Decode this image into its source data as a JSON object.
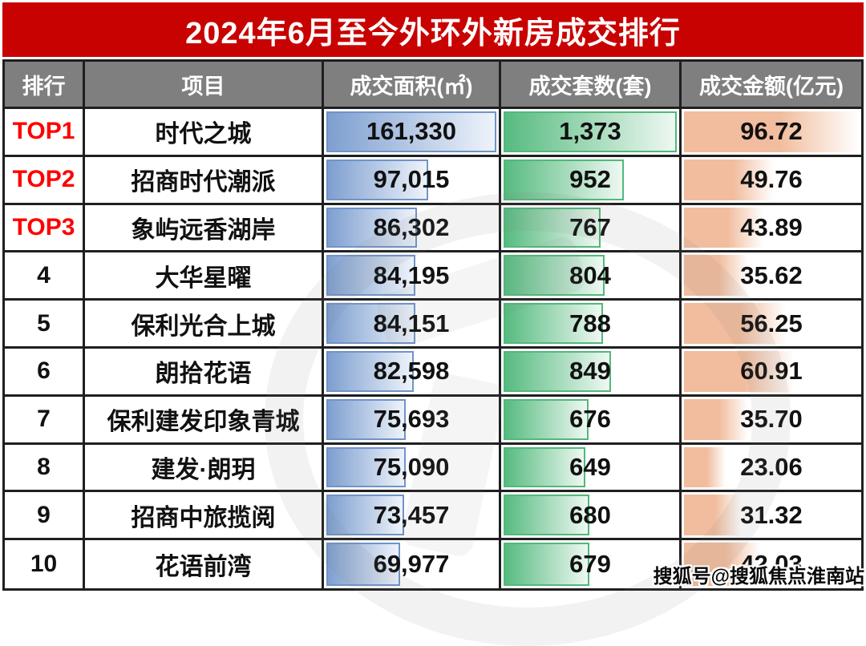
{
  "title": "2024年6月至今外环外新房成交排行",
  "watermark_text": "搜狐号@搜狐焦点淮南站",
  "colors": {
    "title_bg": "#c80101",
    "title_text": "#ffffff",
    "header_bg": "#7f7f7f",
    "header_text": "#ffffff",
    "grid_line": "#1f1f1f",
    "body_text": "#111111",
    "rank_top_text": "#ff0000",
    "area_bar_start": "#7e9fd0",
    "area_bar_end": "#eef3fa",
    "area_bar_border": "#6f94c8",
    "units_bar_start": "#57bb80",
    "units_bar_end": "#eef8f2",
    "units_bar_border": "#52b87a",
    "amount_bar_start": "#f1bd9e",
    "amount_bar_end": "#ffffff"
  },
  "chart_data": {
    "type": "table",
    "title": "2024年6月至今外环外新房成交排行",
    "columns": [
      "排行",
      "项目",
      "成交面积(㎡)",
      "成交套数(套)",
      "成交金额(亿元)"
    ],
    "bar_scaling": "bar width proportional to value / column max",
    "max": {
      "area": 161330,
      "units": 1373,
      "amount": 96.72
    },
    "rows": [
      {
        "rank": "TOP1",
        "project": "时代之城",
        "area": 161330,
        "area_text": "161,330",
        "units": 1373,
        "units_text": "1,373",
        "amount": 96.72,
        "amount_text": "96.72"
      },
      {
        "rank": "TOP2",
        "project": "招商时代潮派",
        "area": 97015,
        "area_text": "97,015",
        "units": 952,
        "units_text": "952",
        "amount": 49.76,
        "amount_text": "49.76"
      },
      {
        "rank": "TOP3",
        "project": "象屿远香湖岸",
        "area": 86302,
        "area_text": "86,302",
        "units": 767,
        "units_text": "767",
        "amount": 43.89,
        "amount_text": "43.89"
      },
      {
        "rank": "4",
        "project": "大华星曜",
        "area": 84195,
        "area_text": "84,195",
        "units": 804,
        "units_text": "804",
        "amount": 35.62,
        "amount_text": "35.62"
      },
      {
        "rank": "5",
        "project": "保利光合上城",
        "area": 84151,
        "area_text": "84,151",
        "units": 788,
        "units_text": "788",
        "amount": 56.25,
        "amount_text": "56.25"
      },
      {
        "rank": "6",
        "project": "朗拾花语",
        "area": 82598,
        "area_text": "82,598",
        "units": 849,
        "units_text": "849",
        "amount": 60.91,
        "amount_text": "60.91"
      },
      {
        "rank": "7",
        "project": "保利建发印象青城",
        "area": 75693,
        "area_text": "75,693",
        "units": 676,
        "units_text": "676",
        "amount": 35.7,
        "amount_text": "35.70"
      },
      {
        "rank": "8",
        "project": "建发·朗玥",
        "area": 75090,
        "area_text": "75,090",
        "units": 649,
        "units_text": "649",
        "amount": 23.06,
        "amount_text": "23.06"
      },
      {
        "rank": "9",
        "project": "招商中旅揽阅",
        "area": 73457,
        "area_text": "73,457",
        "units": 680,
        "units_text": "680",
        "amount": 31.32,
        "amount_text": "31.32"
      },
      {
        "rank": "10",
        "project": "花语前湾",
        "area": 69977,
        "area_text": "69,977",
        "units": 679,
        "units_text": "679",
        "amount": 42.03,
        "amount_text": "42.03"
      }
    ]
  }
}
